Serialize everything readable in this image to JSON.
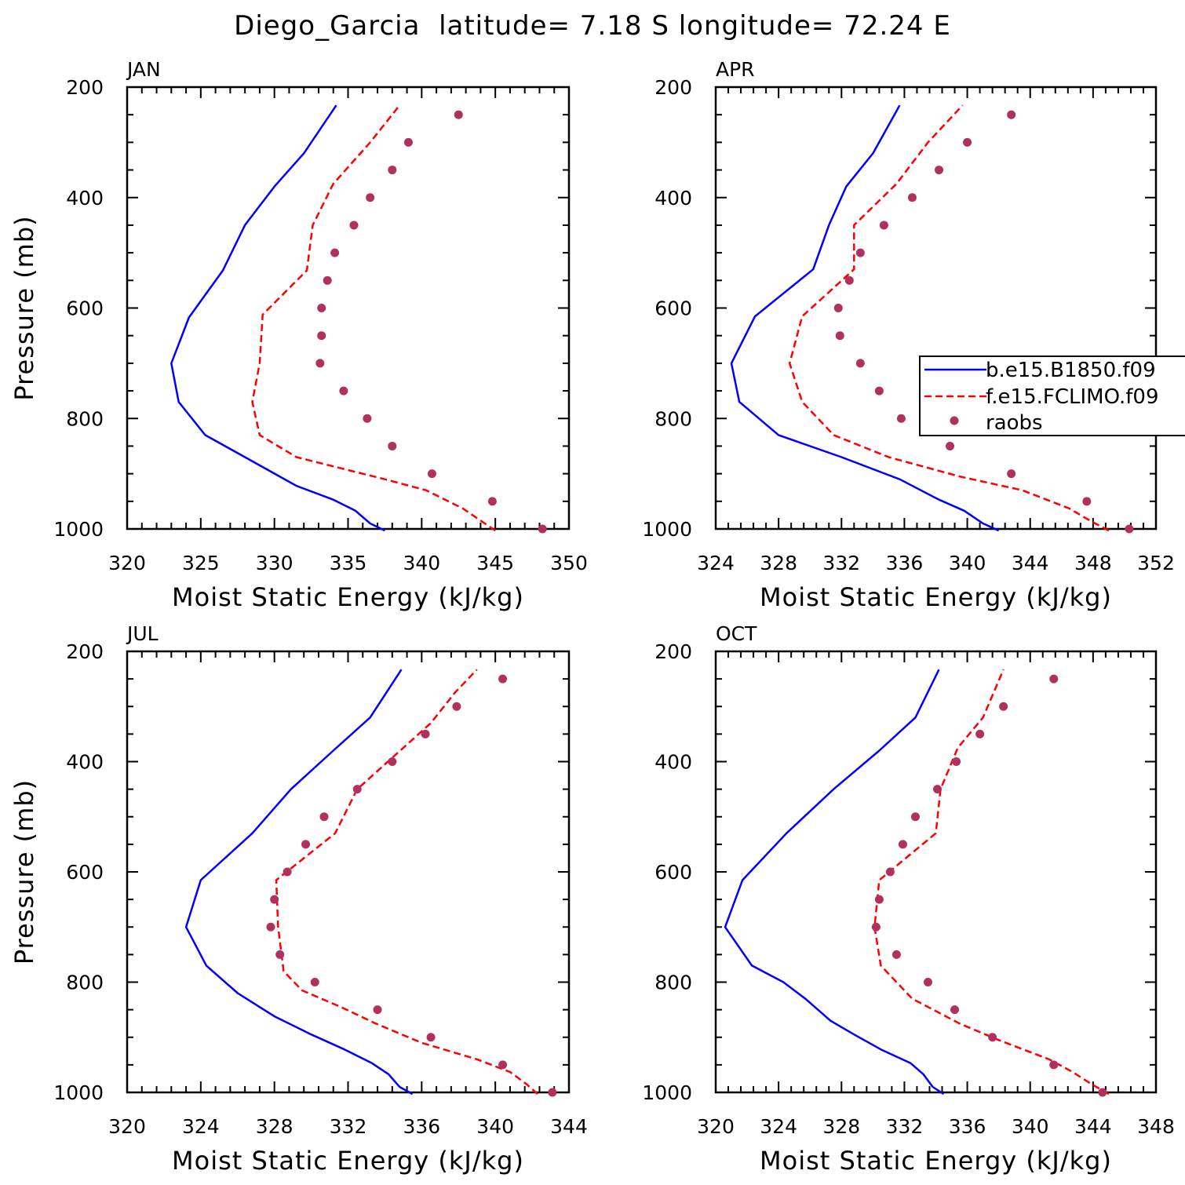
{
  "figure": {
    "title": "Diego_Garcia  latitude= 7.18 S longitude= 72.24 E"
  },
  "legend": {
    "entries": [
      {
        "label": "b.e15.B1850.f09",
        "color": "#0000ff",
        "style": "solid"
      },
      {
        "label": "f.e15.FCLIMO.f09",
        "color": "#ff0000",
        "style": "dashed"
      },
      {
        "label": "raobs",
        "color": "#b03060",
        "style": "markers"
      }
    ],
    "placement": "right of APR panel"
  },
  "chart_data": [
    {
      "type": "line",
      "title": "JAN",
      "xlabel": "Moist Static Energy (kJ/kg)",
      "ylabel": "Pressure (mb)",
      "xlim": [
        320,
        350
      ],
      "ylim": [
        1000,
        200
      ],
      "xticks": [
        "320",
        "325",
        "330",
        "335",
        "340",
        "345",
        "350"
      ],
      "yticks": [
        "200",
        "400",
        "600",
        "800",
        "1000"
      ],
      "series": [
        {
          "name": "b.e15.B1850.f09",
          "color": "#0000ff",
          "style": "solid",
          "points": [
            [
              337.5,
              1003
            ],
            [
              336.5,
              990
            ],
            [
              335.5,
              967
            ],
            [
              334.0,
              947
            ],
            [
              331.5,
              922
            ],
            [
              328,
              870
            ],
            [
              325.3,
              830
            ],
            [
              323.5,
              770
            ],
            [
              323.0,
              700
            ],
            [
              324.2,
              617
            ],
            [
              326.5,
              532
            ],
            [
              328.0,
              450
            ],
            [
              330.0,
              380
            ],
            [
              332.0,
              320
            ],
            [
              334.2,
              233
            ]
          ]
        },
        {
          "name": "f.e15.FCLIMO.f09",
          "color": "#ff0000",
          "style": "dashed",
          "points": [
            [
              345.0,
              1003
            ],
            [
              342.8,
              963
            ],
            [
              340.3,
              930
            ],
            [
              337.5,
              910
            ],
            [
              331.5,
              870
            ],
            [
              329.0,
              830
            ],
            [
              328.5,
              770
            ],
            [
              329.0,
              700
            ],
            [
              329.2,
              612
            ],
            [
              332.2,
              532
            ],
            [
              332.6,
              450
            ],
            [
              334.0,
              375
            ],
            [
              336.5,
              300
            ],
            [
              338.5,
              233
            ]
          ]
        },
        {
          "name": "raobs",
          "color": "#b03060",
          "style": "markers",
          "points": [
            [
              348.2,
              1000
            ],
            [
              344.8,
              950
            ],
            [
              340.7,
              900
            ],
            [
              338.0,
              850
            ],
            [
              336.3,
              800
            ],
            [
              334.7,
              750
            ],
            [
              333.1,
              700
            ],
            [
              333.2,
              650
            ],
            [
              333.2,
              600
            ],
            [
              333.6,
              550
            ],
            [
              334.1,
              500
            ],
            [
              335.4,
              450
            ],
            [
              336.5,
              400
            ],
            [
              338.0,
              350
            ],
            [
              339.1,
              300
            ],
            [
              342.5,
              250
            ]
          ]
        }
      ]
    },
    {
      "type": "line",
      "title": "APR",
      "xlabel": "Moist Static Energy (kJ/kg)",
      "ylabel": "",
      "xlim": [
        324,
        352
      ],
      "ylim": [
        1000,
        200
      ],
      "xticks": [
        "324",
        "328",
        "332",
        "336",
        "340",
        "344",
        "348",
        "352"
      ],
      "yticks": [
        "200",
        "400",
        "600",
        "800",
        "1000"
      ],
      "series": [
        {
          "name": "b.e15.B1850.f09",
          "color": "#0000ff",
          "style": "solid",
          "points": [
            [
              342.0,
              1003
            ],
            [
              341.0,
              990
            ],
            [
              339.8,
              967
            ],
            [
              338.2,
              947
            ],
            [
              335.7,
              910
            ],
            [
              332.0,
              870
            ],
            [
              328.0,
              830
            ],
            [
              325.5,
              770
            ],
            [
              325.0,
              700
            ],
            [
              326.5,
              615
            ],
            [
              330.2,
              530
            ],
            [
              331.2,
              450
            ],
            [
              332.3,
              380
            ],
            [
              334.0,
              320
            ],
            [
              335.7,
              233
            ]
          ]
        },
        {
          "name": "f.e15.FCLIMO.f09",
          "color": "#ff0000",
          "style": "dashed",
          "points": [
            [
              349.0,
              1003
            ],
            [
              347.8,
              985
            ],
            [
              346.5,
              963
            ],
            [
              343.5,
              930
            ],
            [
              339.5,
              905
            ],
            [
              335.0,
              870
            ],
            [
              331.5,
              830
            ],
            [
              329.5,
              770
            ],
            [
              328.7,
              700
            ],
            [
              329.5,
              615
            ],
            [
              332.8,
              530
            ],
            [
              332.8,
              450
            ],
            [
              335.5,
              375
            ],
            [
              337.5,
              300
            ],
            [
              339.7,
              233
            ]
          ]
        },
        {
          "name": "raobs",
          "color": "#b03060",
          "style": "markers",
          "points": [
            [
              350.3,
              1000
            ],
            [
              347.6,
              950
            ],
            [
              342.8,
              900
            ],
            [
              338.9,
              850
            ],
            [
              335.8,
              800
            ],
            [
              334.4,
              750
            ],
            [
              333.2,
              700
            ],
            [
              331.9,
              650
            ],
            [
              331.8,
              600
            ],
            [
              332.5,
              550
            ],
            [
              333.2,
              500
            ],
            [
              334.7,
              450
            ],
            [
              336.5,
              400
            ],
            [
              338.2,
              350
            ],
            [
              340.0,
              300
            ],
            [
              342.8,
              250
            ]
          ]
        }
      ]
    },
    {
      "type": "line",
      "title": "JUL",
      "xlabel": "Moist Static Energy (kJ/kg)",
      "ylabel": "Pressure (mb)",
      "xlim": [
        320,
        344
      ],
      "ylim": [
        1000,
        200
      ],
      "xticks": [
        "320",
        "324",
        "328",
        "332",
        "336",
        "340",
        "344"
      ],
      "yticks": [
        "200",
        "400",
        "600",
        "800",
        "1000"
      ],
      "series": [
        {
          "name": "b.e15.B1850.f09",
          "color": "#0000ff",
          "style": "solid",
          "points": [
            [
              335.5,
              1003
            ],
            [
              334.8,
              990
            ],
            [
              334.2,
              967
            ],
            [
              333.3,
              947
            ],
            [
              331.8,
              922
            ],
            [
              330.0,
              895
            ],
            [
              328.0,
              862
            ],
            [
              326.0,
              820
            ],
            [
              324.3,
              770
            ],
            [
              323.2,
              700
            ],
            [
              324.0,
              615
            ],
            [
              326.8,
              530
            ],
            [
              328.9,
              450
            ],
            [
              331.2,
              380
            ],
            [
              333.2,
              320
            ],
            [
              334.9,
              233
            ]
          ]
        },
        {
          "name": "f.e15.FCLIMO.f09",
          "color": "#ff0000",
          "style": "dashed",
          "points": [
            [
              342.3,
              1003
            ],
            [
              341.7,
              985
            ],
            [
              340.8,
              963
            ],
            [
              339.0,
              940
            ],
            [
              336.0,
              910
            ],
            [
              333.5,
              875
            ],
            [
              331.6,
              845
            ],
            [
              329.5,
              815
            ],
            [
              328.5,
              780
            ],
            [
              328.2,
              700
            ],
            [
              328.1,
              615
            ],
            [
              331.3,
              530
            ],
            [
              332.5,
              450
            ],
            [
              334.5,
              390
            ],
            [
              336.5,
              330
            ],
            [
              337.8,
              275
            ],
            [
              339.0,
              233
            ]
          ]
        },
        {
          "name": "raobs",
          "color": "#b03060",
          "style": "markers",
          "points": [
            [
              343.1,
              1000
            ],
            [
              340.4,
              950
            ],
            [
              336.5,
              900
            ],
            [
              333.6,
              850
            ],
            [
              330.2,
              800
            ],
            [
              328.3,
              750
            ],
            [
              327.8,
              700
            ],
            [
              328.0,
              650
            ],
            [
              328.7,
              600
            ],
            [
              329.7,
              550
            ],
            [
              330.7,
              500
            ],
            [
              332.5,
              450
            ],
            [
              334.4,
              400
            ],
            [
              336.2,
              350
            ],
            [
              337.9,
              300
            ],
            [
              340.4,
              250
            ]
          ]
        }
      ]
    },
    {
      "type": "line",
      "title": "OCT",
      "xlabel": "Moist Static Energy (kJ/kg)",
      "ylabel": "",
      "xlim": [
        320,
        348
      ],
      "ylim": [
        1000,
        200
      ],
      "xticks": [
        "320",
        "324",
        "328",
        "332",
        "336",
        "340",
        "344",
        "348"
      ],
      "yticks": [
        "200",
        "400",
        "600",
        "800",
        "1000"
      ],
      "series": [
        {
          "name": "b.e15.B1850.f09",
          "color": "#0000ff",
          "style": "solid",
          "points": [
            [
              334.5,
              1003
            ],
            [
              333.8,
              990
            ],
            [
              333.2,
              967
            ],
            [
              332.4,
              947
            ],
            [
              330.5,
              922
            ],
            [
              328.8,
              895
            ],
            [
              327.3,
              870
            ],
            [
              325.7,
              830
            ],
            [
              324.3,
              800
            ],
            [
              322.3,
              770
            ],
            [
              320.6,
              700
            ],
            [
              321.7,
              615
            ],
            [
              324.5,
              530
            ],
            [
              327.5,
              450
            ],
            [
              330.4,
              380
            ],
            [
              332.7,
              320
            ],
            [
              334.2,
              233
            ]
          ]
        },
        {
          "name": "f.e15.FCLIMO.f09",
          "color": "#ff0000",
          "style": "dashed",
          "points": [
            [
              345.0,
              1003
            ],
            [
              343.9,
              985
            ],
            [
              342.7,
              963
            ],
            [
              341.2,
              940
            ],
            [
              338.0,
              905
            ],
            [
              335.5,
              875
            ],
            [
              332.5,
              830
            ],
            [
              330.5,
              770
            ],
            [
              330.1,
              700
            ],
            [
              330.4,
              615
            ],
            [
              334.0,
              530
            ],
            [
              334.3,
              450
            ],
            [
              335.4,
              375
            ],
            [
              337.0,
              320
            ],
            [
              338.3,
              233
            ]
          ]
        },
        {
          "name": "raobs",
          "color": "#b03060",
          "style": "markers",
          "points": [
            [
              344.6,
              1000
            ],
            [
              341.5,
              950
            ],
            [
              337.6,
              900
            ],
            [
              335.2,
              850
            ],
            [
              333.5,
              800
            ],
            [
              331.5,
              750
            ],
            [
              330.2,
              700
            ],
            [
              330.4,
              650
            ],
            [
              331.1,
              600
            ],
            [
              331.9,
              550
            ],
            [
              332.7,
              500
            ],
            [
              334.1,
              450
            ],
            [
              335.3,
              400
            ],
            [
              336.8,
              350
            ],
            [
              338.3,
              300
            ],
            [
              341.5,
              250
            ]
          ]
        }
      ]
    }
  ]
}
